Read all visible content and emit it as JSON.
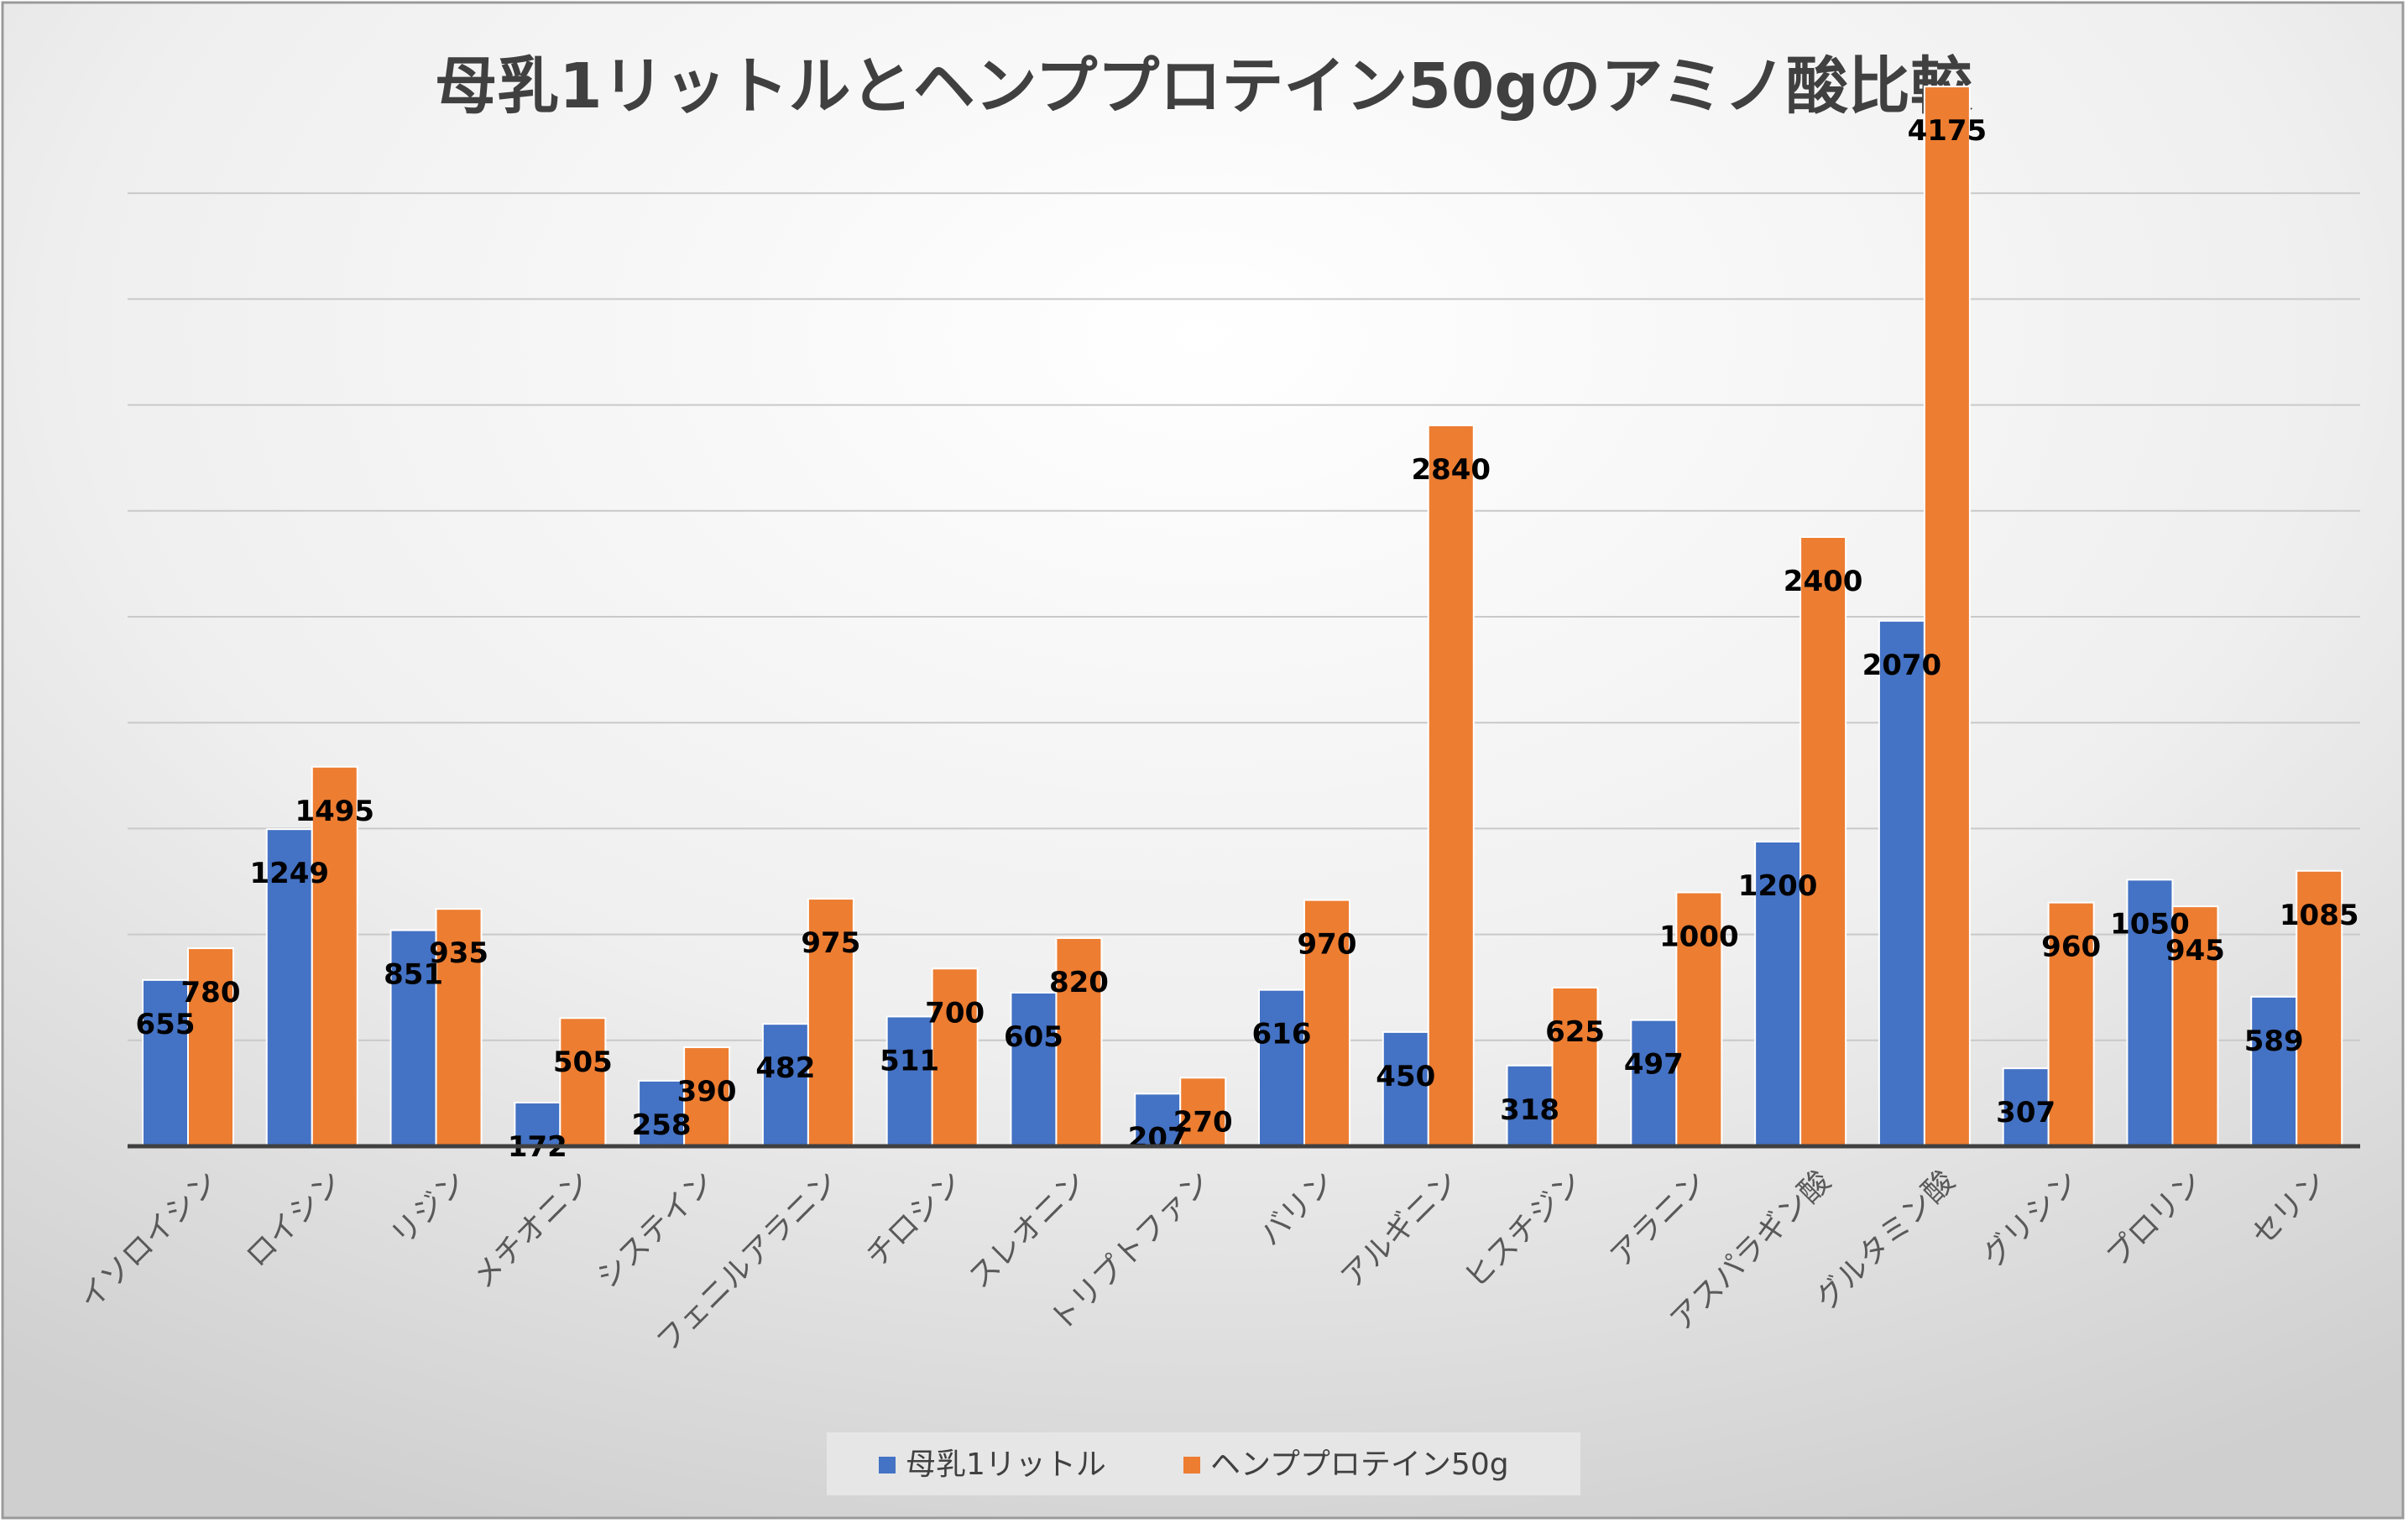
{
  "chart_data": {
    "type": "bar",
    "title": "母乳1リットルとヘンププロテイン50gのアミノ酸比較",
    "xlabel": "",
    "ylabel": "",
    "ylim": [
      0,
      4500
    ],
    "grid": true,
    "legend_position": "bottom",
    "categories": [
      "イソロイシン",
      "ロイシン",
      "リジン",
      "メチオニン",
      "システイン",
      "フェニルアラニン",
      "チロシン",
      "スレオニン",
      "トリプトファン",
      "バリン",
      "アルギニン",
      "ヒスチジン",
      "アラニン",
      "アスパラギン酸",
      "グルタミン酸",
      "グリシン",
      "プロリン",
      "セリン"
    ],
    "series": [
      {
        "name": "母乳1リットル",
        "color": "#4472C4",
        "values": [
          655,
          1249,
          851,
          172,
          258,
          482,
          511,
          605,
          207,
          616,
          450,
          318,
          497,
          1200,
          2070,
          307,
          1050,
          589
        ]
      },
      {
        "name": "ヘンププロテイン50g",
        "color": "#ED7D31",
        "values": [
          780,
          1495,
          935,
          505,
          390,
          975,
          700,
          820,
          270,
          970,
          2840,
          625,
          1000,
          2400,
          4175,
          960,
          945,
          1085
        ]
      }
    ]
  }
}
